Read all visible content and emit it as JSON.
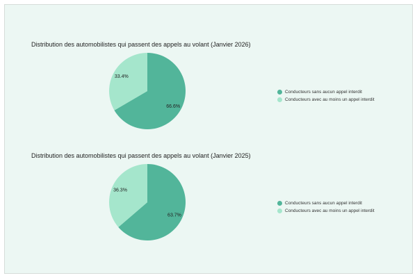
{
  "chart_data": [
    {
      "type": "pie",
      "title": "Distribution des automobilistes qui passent des appels au volant (Janvier 2026)",
      "categories": [
        "Conducteurs sans aucun appel interdit",
        "Conducteurs avec au moins un appel interdit"
      ],
      "values": [
        66.6,
        33.4
      ],
      "labels": [
        "66.6%",
        "33.4%"
      ],
      "colors": [
        "#52b59a",
        "#a5e6cc"
      ],
      "legend_position": "right"
    },
    {
      "type": "pie",
      "title": "Distribution des automobilistes qui passent des appels au volant (Janvier 2025)",
      "categories": [
        "Conducteurs sans aucun appel interdit",
        "Conducteurs avec au moins un appel interdit"
      ],
      "values": [
        63.7,
        36.3
      ],
      "labels": [
        "63.7%",
        "36.3%"
      ],
      "colors": [
        "#52b59a",
        "#a5e6cc"
      ],
      "legend_position": "right"
    }
  ]
}
